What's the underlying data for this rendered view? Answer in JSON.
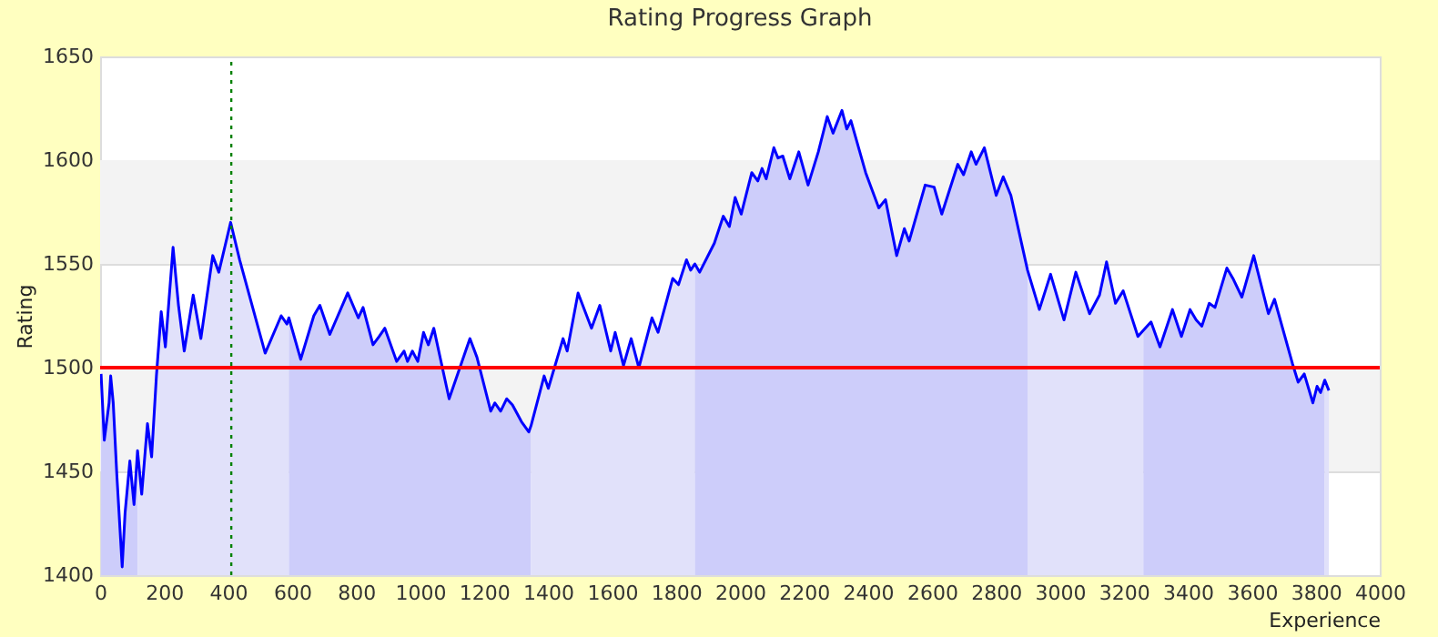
{
  "chart_data": {
    "type": "area",
    "title": "Rating Progress Graph",
    "xlabel": "Experience",
    "ylabel": "Rating",
    "xlim": [
      0,
      4000
    ],
    "xticks": [
      0,
      200,
      400,
      600,
      800,
      1000,
      1200,
      1400,
      1600,
      1800,
      2000,
      2200,
      2400,
      2600,
      2800,
      3000,
      3200,
      3400,
      3600,
      3800,
      4000
    ],
    "ylim": [
      1400,
      1650
    ],
    "yticks": [
      1400,
      1450,
      1500,
      1550,
      1600,
      1650
    ],
    "grid": "y",
    "bands": [
      {
        "axis": "y",
        "from": 1450,
        "to": 1500,
        "color": "#f3f3f3"
      },
      {
        "axis": "y",
        "from": 1550,
        "to": 1600,
        "color": "#f3f3f3"
      }
    ],
    "ref_lines": [
      {
        "axis": "y",
        "value": 1500,
        "color": "#ff0000",
        "line_style": "solid"
      },
      {
        "axis": "x",
        "value": 410,
        "color": "#008000",
        "line_style": "dotted"
      }
    ],
    "series": [
      {
        "color": "#cdcdfa",
        "x": [
          3,
          13,
          28,
          33,
          41,
          52,
          69,
          78,
          93,
          106,
          117
        ],
        "values": [
          1497,
          1465,
          1483,
          1496,
          1483,
          1449,
          1404,
          1430,
          1455,
          1434,
          1460
        ]
      },
      {
        "color": "#e1e1fa",
        "x": [
          117,
          130,
          148,
          161,
          176,
          191,
          204,
          228,
          245,
          263,
          291,
          315,
          352,
          371,
          408,
          436,
          516,
          566,
          584,
          590
        ],
        "values": [
          1460,
          1439,
          1473,
          1457,
          1496,
          1527,
          1510,
          1558,
          1530,
          1508,
          1535,
          1514,
          1554,
          1546,
          1570,
          1552,
          1507,
          1525,
          1521,
          1524
        ]
      },
      {
        "color": "#cdcdfa",
        "x": [
          590,
          627,
          668,
          687,
          718,
          774,
          807,
          822,
          853,
          872,
          890,
          927,
          950,
          961,
          976,
          993,
          1011,
          1026,
          1043,
          1091,
          1156,
          1178,
          1221,
          1234,
          1252,
          1271,
          1289,
          1317,
          1340,
          1347
        ],
        "values": [
          1524,
          1504,
          1525,
          1530,
          1516,
          1536,
          1524,
          1529,
          1511,
          1515,
          1519,
          1503,
          1508,
          1503,
          1508,
          1503,
          1517,
          1511,
          1519,
          1485,
          1514,
          1505,
          1479,
          1483,
          1479,
          1485,
          1482,
          1474,
          1469,
          1472
        ]
      },
      {
        "color": "#e1e1fa",
        "x": [
          1347,
          1388,
          1401,
          1447,
          1460,
          1494,
          1536,
          1562,
          1596,
          1610,
          1636,
          1660,
          1684,
          1725,
          1744,
          1790,
          1808,
          1833,
          1846,
          1859
        ],
        "values": [
          1472,
          1496,
          1490,
          1514,
          1508,
          1536,
          1519,
          1530,
          1508,
          1517,
          1501,
          1514,
          1500,
          1524,
          1517,
          1543,
          1540,
          1552,
          1547,
          1550
        ]
      },
      {
        "color": "#cdcdfa",
        "x": [
          1859,
          1874,
          1920,
          1948,
          1967,
          1985,
          2004,
          2037,
          2056,
          2069,
          2082,
          2106,
          2119,
          2134,
          2156,
          2184,
          2213,
          2245,
          2273,
          2291,
          2319,
          2334,
          2347,
          2393,
          2434,
          2455,
          2490,
          2514,
          2529,
          2579,
          2607,
          2631,
          2681,
          2699,
          2723,
          2738,
          2764,
          2801,
          2823,
          2847,
          2899
        ],
        "values": [
          1550,
          1546,
          1560,
          1573,
          1568,
          1582,
          1574,
          1594,
          1590,
          1596,
          1591,
          1606,
          1601,
          1602,
          1591,
          1604,
          1588,
          1604,
          1621,
          1613,
          1624,
          1615,
          1619,
          1594,
          1577,
          1581,
          1554,
          1567,
          1561,
          1588,
          1587,
          1574,
          1598,
          1593,
          1604,
          1598,
          1606,
          1583,
          1592,
          1583,
          1547
        ]
      },
      {
        "color": "#e1e1fa",
        "x": [
          2899,
          2936,
          2971,
          3013,
          3050,
          3093,
          3124,
          3146,
          3174,
          3198,
          3244,
          3261
        ],
        "values": [
          1547,
          1528,
          1545,
          1523,
          1546,
          1526,
          1535,
          1551,
          1531,
          1537,
          1515,
          1518
        ]
      },
      {
        "color": "#cdcdfa",
        "x": [
          3261,
          3285,
          3313,
          3352,
          3380,
          3407,
          3426,
          3444,
          3467,
          3485,
          3522,
          3541,
          3569,
          3606,
          3652,
          3671,
          3727,
          3745,
          3764,
          3791,
          3804,
          3815,
          3828
        ],
        "values": [
          1518,
          1522,
          1510,
          1528,
          1515,
          1528,
          1523,
          1520,
          1531,
          1529,
          1548,
          1543,
          1534,
          1554,
          1526,
          1533,
          1502,
          1493,
          1497,
          1483,
          1491,
          1488,
          1494
        ]
      },
      {
        "color": "#e1e1fa",
        "x": [
          3828,
          3841
        ],
        "values": [
          1494,
          1489
        ]
      },
      {
        "type": "line",
        "color": "#0000ff",
        "x": [
          3,
          13,
          28,
          33,
          41,
          52,
          69,
          78,
          93,
          106,
          117,
          130,
          148,
          161,
          176,
          191,
          204,
          228,
          245,
          263,
          291,
          315,
          352,
          371,
          408,
          436,
          516,
          566,
          584,
          590,
          627,
          668,
          687,
          718,
          774,
          807,
          822,
          853,
          872,
          890,
          927,
          950,
          961,
          976,
          993,
          1011,
          1026,
          1043,
          1091,
          1156,
          1178,
          1221,
          1234,
          1252,
          1271,
          1289,
          1317,
          1340,
          1347,
          1388,
          1401,
          1447,
          1460,
          1494,
          1536,
          1562,
          1596,
          1610,
          1636,
          1660,
          1684,
          1725,
          1744,
          1790,
          1808,
          1833,
          1846,
          1859,
          1874,
          1920,
          1948,
          1967,
          1985,
          2004,
          2037,
          2056,
          2069,
          2082,
          2106,
          2119,
          2134,
          2156,
          2184,
          2213,
          2245,
          2273,
          2291,
          2319,
          2334,
          2347,
          2393,
          2434,
          2455,
          2490,
          2514,
          2529,
          2579,
          2607,
          2631,
          2681,
          2699,
          2723,
          2738,
          2764,
          2801,
          2823,
          2847,
          2899,
          2936,
          2971,
          3013,
          3050,
          3093,
          3124,
          3146,
          3174,
          3198,
          3244,
          3261,
          3285,
          3313,
          3352,
          3380,
          3407,
          3426,
          3444,
          3467,
          3485,
          3522,
          3541,
          3569,
          3606,
          3652,
          3671,
          3727,
          3745,
          3764,
          3791,
          3804,
          3815,
          3828,
          3841
        ],
        "values": [
          1497,
          1465,
          1483,
          1496,
          1483,
          1449,
          1404,
          1430,
          1455,
          1434,
          1460,
          1439,
          1473,
          1457,
          1496,
          1527,
          1510,
          1558,
          1530,
          1508,
          1535,
          1514,
          1554,
          1546,
          1570,
          1552,
          1507,
          1525,
          1521,
          1524,
          1504,
          1525,
          1530,
          1516,
          1536,
          1524,
          1529,
          1511,
          1515,
          1519,
          1503,
          1508,
          1503,
          1508,
          1503,
          1517,
          1511,
          1519,
          1485,
          1514,
          1505,
          1479,
          1483,
          1479,
          1485,
          1482,
          1474,
          1469,
          1472,
          1496,
          1490,
          1514,
          1508,
          1536,
          1519,
          1530,
          1508,
          1517,
          1501,
          1514,
          1500,
          1524,
          1517,
          1543,
          1540,
          1552,
          1547,
          1550,
          1546,
          1560,
          1573,
          1568,
          1582,
          1574,
          1594,
          1590,
          1596,
          1591,
          1606,
          1601,
          1602,
          1591,
          1604,
          1588,
          1604,
          1621,
          1613,
          1624,
          1615,
          1619,
          1594,
          1577,
          1581,
          1554,
          1567,
          1561,
          1588,
          1587,
          1574,
          1598,
          1593,
          1604,
          1598,
          1606,
          1583,
          1592,
          1583,
          1547,
          1528,
          1545,
          1523,
          1546,
          1526,
          1535,
          1551,
          1531,
          1537,
          1515,
          1518,
          1522,
          1510,
          1528,
          1515,
          1528,
          1523,
          1520,
          1531,
          1529,
          1548,
          1543,
          1534,
          1554,
          1526,
          1533,
          1502,
          1493,
          1497,
          1483,
          1491,
          1488,
          1494,
          1489
        ]
      }
    ]
  }
}
